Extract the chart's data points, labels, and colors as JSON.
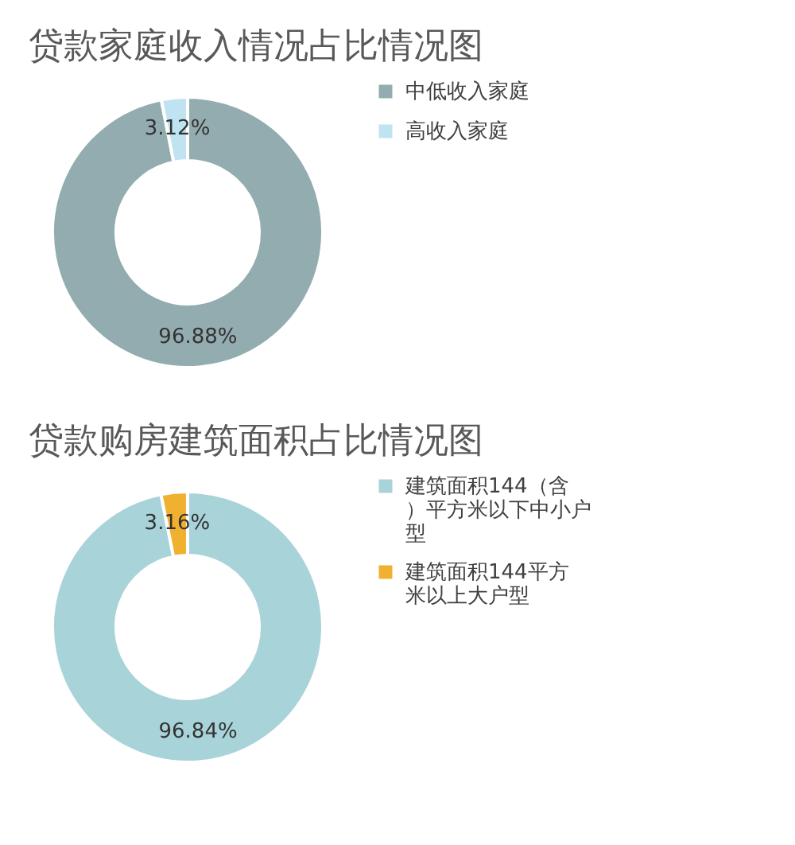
{
  "chart_data": [
    {
      "type": "donut",
      "title": "贷款家庭收入情况占比情况图",
      "categories": [
        "中低收入家庭",
        "高收入家庭"
      ],
      "values": [
        96.88,
        3.12
      ],
      "colors": [
        "#93acb0",
        "#bfe3f1"
      ],
      "value_labels": [
        "96.88%",
        "3.12%"
      ],
      "legend": "right"
    },
    {
      "type": "donut",
      "title": "贷款购房建筑面积占比情况图",
      "categories": [
        "建筑面积144（含）平方米以下中小户型",
        "建筑面积144平方米以上大户型"
      ],
      "values": [
        96.84,
        3.16
      ],
      "colors": [
        "#a8d3d9",
        "#f0b030"
      ],
      "value_labels": [
        "96.84%",
        "3.16%"
      ],
      "legend": "right"
    }
  ]
}
